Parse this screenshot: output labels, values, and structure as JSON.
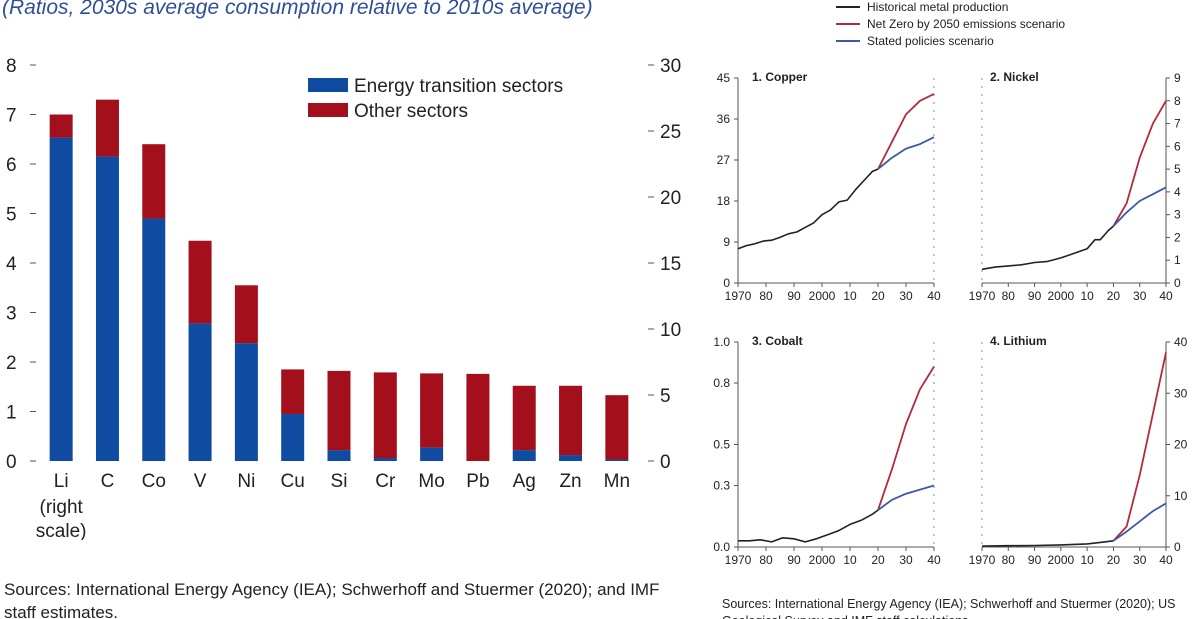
{
  "subtitle": "(Ratios, 2030s average consumption relative to 2010s average)",
  "sources_left": "Sources: International Energy Agency (IEA); Schwerhoff and Stuermer (2020); and IMF staff estimates.",
  "sources_right": "Sources: International Energy Agency (IEA); Schwerhoff and Stuermer (2020); US Geological Survey and IMF staff calculations.",
  "legend_right": [
    {
      "name": "Historical metal production",
      "color": "#222222"
    },
    {
      "name": "Net Zero by 2050 emissions scenario",
      "color": "#b52a3a"
    },
    {
      "name": "Stated policies scenario",
      "color": "#3a5aa8"
    }
  ],
  "chart_data": [
    {
      "type": "bar",
      "stacked": true,
      "categories": [
        "Li",
        "C",
        "Co",
        "V",
        "Ni",
        "Cu",
        "Si",
        "Cr",
        "Mo",
        "Pb",
        "Ag",
        "Zn",
        "Mn"
      ],
      "category_note": [
        "(right",
        "scale)"
      ],
      "series": [
        {
          "name": "Energy transition sectors",
          "color": "#0f4ba0",
          "values": [
            24.5,
            6.15,
            4.9,
            2.78,
            2.38,
            0.95,
            0.22,
            0.06,
            0.27,
            0.0,
            0.22,
            0.12,
            0.03
          ]
        },
        {
          "name": "Other sectors",
          "color": "#a3101c",
          "values": [
            1.75,
            1.15,
            1.5,
            1.67,
            1.17,
            0.9,
            1.6,
            1.73,
            1.5,
            1.76,
            1.3,
            1.4,
            1.3
          ]
        }
      ],
      "left_axis": {
        "range": [
          0,
          8
        ],
        "ticks": [
          "0",
          "1",
          "2",
          "3",
          "4",
          "5",
          "6",
          "7",
          "8"
        ]
      },
      "right_axis": {
        "range": [
          0,
          30
        ],
        "ticks": [
          "0",
          "5",
          "10",
          "15",
          "20",
          "25",
          "30"
        ]
      },
      "legend_placement": "top-right",
      "grid": false
    },
    {
      "type": "line",
      "title": "1. Copper",
      "xlim": [
        1970,
        2040
      ],
      "xticks": [
        "1970",
        "80",
        "90",
        "2000",
        "10",
        "20",
        "30",
        "40"
      ],
      "ylim": [
        0,
        45
      ],
      "yticks": [
        "0",
        "9",
        "18",
        "27",
        "36",
        "45"
      ],
      "y_axis_side": "left",
      "series": [
        {
          "name": "Historical metal production",
          "x": [
            1970,
            1973,
            1976,
            1979,
            1982,
            1985,
            1988,
            1991,
            1994,
            1997,
            2000,
            2003,
            2006,
            2009,
            2012,
            2015,
            2018,
            2020
          ],
          "y": [
            7.5,
            8.2,
            8.6,
            9.2,
            9.4,
            10,
            10.8,
            11.2,
            12.2,
            13.2,
            15,
            16,
            17.8,
            18.2,
            20.5,
            22.5,
            24.5,
            25
          ]
        },
        {
          "name": "Net Zero by 2050 emissions scenario",
          "x": [
            2020,
            2025,
            2030,
            2035,
            2040
          ],
          "y": [
            25,
            31,
            37,
            40,
            41.5
          ]
        },
        {
          "name": "Stated policies scenario",
          "x": [
            2020,
            2025,
            2030,
            2035,
            2040
          ],
          "y": [
            25,
            27.5,
            29.5,
            30.5,
            32
          ]
        }
      ]
    },
    {
      "type": "line",
      "title": "2. Nickel",
      "xlim": [
        1970,
        2040
      ],
      "xticks": [
        "1970",
        "80",
        "90",
        "2000",
        "10",
        "20",
        "30",
        "40"
      ],
      "ylim": [
        0,
        9
      ],
      "yticks": [
        "0",
        "1",
        "2",
        "3",
        "4",
        "5",
        "6",
        "7",
        "8",
        "9"
      ],
      "y_axis_side": "right",
      "series": [
        {
          "name": "Historical metal production",
          "x": [
            1970,
            1975,
            1980,
            1985,
            1990,
            1995,
            2000,
            2005,
            2010,
            2013,
            2015,
            2018,
            2020
          ],
          "y": [
            0.6,
            0.7,
            0.75,
            0.8,
            0.9,
            0.95,
            1.1,
            1.3,
            1.5,
            1.9,
            1.9,
            2.3,
            2.5
          ]
        },
        {
          "name": "Net Zero by 2050 emissions scenario",
          "x": [
            2020,
            2025,
            2030,
            2035,
            2040
          ],
          "y": [
            2.5,
            3.5,
            5.5,
            7,
            8
          ]
        },
        {
          "name": "Stated policies scenario",
          "x": [
            2020,
            2025,
            2030,
            2035,
            2040
          ],
          "y": [
            2.5,
            3.1,
            3.6,
            3.9,
            4.2
          ]
        }
      ]
    },
    {
      "type": "line",
      "title": "3. Cobalt",
      "xlim": [
        1970,
        2040
      ],
      "xticks": [
        "1970",
        "80",
        "90",
        "2000",
        "10",
        "20",
        "30",
        "40"
      ],
      "ylim": [
        0,
        1.0
      ],
      "yticks": [
        "0.0",
        "0.3",
        "0.5",
        "0.8",
        "1.0"
      ],
      "y_axis_side": "left",
      "series": [
        {
          "name": "Historical metal production",
          "x": [
            1970,
            1974,
            1978,
            1982,
            1986,
            1990,
            1994,
            1998,
            2002,
            2006,
            2010,
            2014,
            2018,
            2020
          ],
          "y": [
            0.03,
            0.03,
            0.035,
            0.025,
            0.045,
            0.04,
            0.025,
            0.04,
            0.06,
            0.08,
            0.11,
            0.13,
            0.16,
            0.18
          ]
        },
        {
          "name": "Net Zero by 2050 emissions scenario",
          "x": [
            2020,
            2025,
            2030,
            2035,
            2040
          ],
          "y": [
            0.18,
            0.38,
            0.6,
            0.77,
            0.88
          ]
        },
        {
          "name": "Stated policies scenario",
          "x": [
            2020,
            2025,
            2030,
            2035,
            2040
          ],
          "y": [
            0.18,
            0.23,
            0.26,
            0.28,
            0.3
          ]
        }
      ]
    },
    {
      "type": "line",
      "title": "4. Lithium",
      "xlim": [
        1970,
        2040
      ],
      "xticks": [
        "1970",
        "80",
        "90",
        "2000",
        "10",
        "20",
        "30",
        "40"
      ],
      "ylim": [
        0,
        40
      ],
      "yticks": [
        "0",
        "10",
        "20",
        "30",
        "40"
      ],
      "y_axis_side": "right",
      "series": [
        {
          "name": "Historical metal production",
          "x": [
            1970,
            1980,
            1990,
            2000,
            2010,
            2015,
            2020
          ],
          "y": [
            0.2,
            0.25,
            0.3,
            0.4,
            0.6,
            0.9,
            1.2
          ]
        },
        {
          "name": "Net Zero by 2050 emissions scenario",
          "x": [
            2020,
            2025,
            2030,
            2035,
            2040
          ],
          "y": [
            1.2,
            4,
            14,
            26,
            38
          ]
        },
        {
          "name": "Stated policies scenario",
          "x": [
            2020,
            2025,
            2030,
            2035,
            2040
          ],
          "y": [
            1.2,
            3,
            5,
            7,
            8.5
          ]
        }
      ]
    }
  ]
}
